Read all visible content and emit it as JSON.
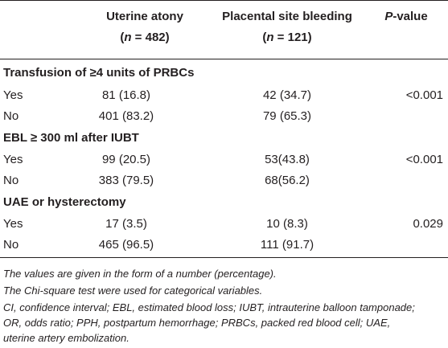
{
  "header": {
    "col1_line1": "Uterine atony",
    "col1_line2": "(n = 482)",
    "col2_line1": "Placental site bleeding",
    "col2_line2": "(n = 121)",
    "col3_italic": "P",
    "col3_rest": "-value"
  },
  "sections": [
    {
      "title": "Transfusion of ≥4 units of PRBCs",
      "rows": [
        {
          "label": "Yes",
          "v1": "81 (16.8)",
          "v2": "42 (34.7)",
          "p": "<0.001"
        },
        {
          "label": "No",
          "v1": "401 (83.2)",
          "v2": "79 (65.3)",
          "p": ""
        }
      ]
    },
    {
      "title": "EBL ≥ 300 ml after IUBT",
      "rows": [
        {
          "label": "Yes",
          "v1": "99 (20.5)",
          "v2": "53(43.8)",
          "p": "<0.001"
        },
        {
          "label": "No",
          "v1": "383 (79.5)",
          "v2": "68(56.2)",
          "p": ""
        }
      ]
    },
    {
      "title": "UAE or hysterectomy",
      "rows": [
        {
          "label": "Yes",
          "v1": "17 (3.5)",
          "v2": "10 (8.3)",
          "p": "0.029"
        },
        {
          "label": "No",
          "v1": "465 (96.5)",
          "v2": "111 (91.7)",
          "p": ""
        }
      ]
    }
  ],
  "footnotes": {
    "line1": "The values are given in the form of a number (percentage).",
    "line2": "The Chi-square test were used for categorical variables.",
    "line3": "CI, confidence interval; EBL, estimated blood loss; IUBT, intrauterine balloon tamponade;",
    "line4": "OR, odds ratio; PPH, postpartum hemorrhage; PRBCs, packed red blood cell; UAE,",
    "line5": "uterine artery embolization."
  }
}
